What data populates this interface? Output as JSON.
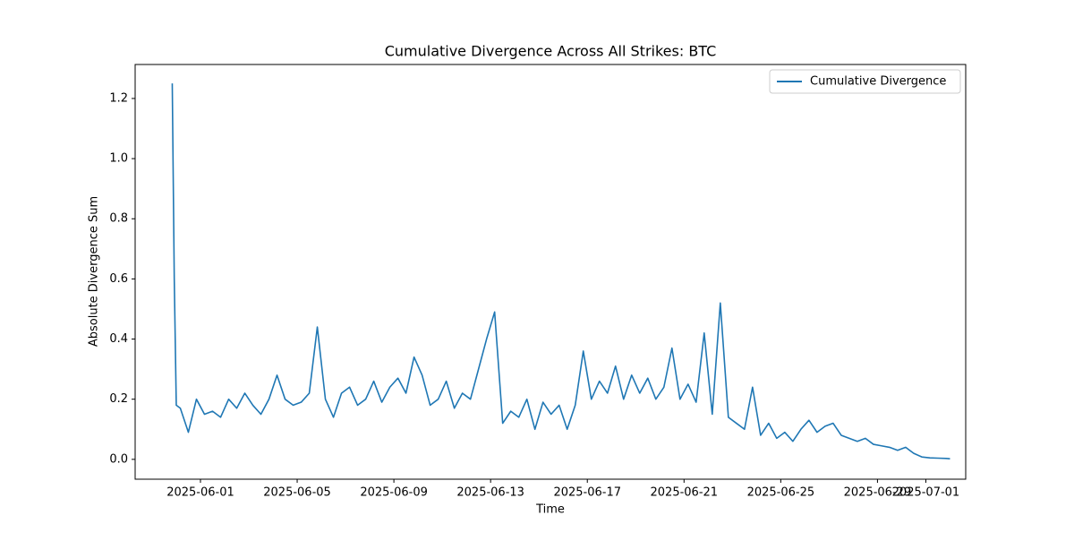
{
  "chart_data": {
    "type": "line",
    "title": "Cumulative Divergence Across All Strikes: BTC",
    "x_label": "Time",
    "y_label": "Absolute Divergence Sum",
    "x": [
      "2025-05-30T20:00",
      "2025-05-30T22:00",
      "2025-05-31T00:00",
      "2025-05-31T04:00",
      "2025-05-31T12:00",
      "2025-05-31T20:00",
      "2025-06-01T04:00",
      "2025-06-01T12:00",
      "2025-06-01T20:00",
      "2025-06-02T04:00",
      "2025-06-02T12:00",
      "2025-06-02T20:00",
      "2025-06-03T04:00",
      "2025-06-03T12:00",
      "2025-06-03T20:00",
      "2025-06-04T04:00",
      "2025-06-04T12:00",
      "2025-06-04T20:00",
      "2025-06-05T04:00",
      "2025-06-05T12:00",
      "2025-06-05T20:00",
      "2025-06-06T04:00",
      "2025-06-06T12:00",
      "2025-06-06T20:00",
      "2025-06-07T04:00",
      "2025-06-07T12:00",
      "2025-06-07T20:00",
      "2025-06-08T04:00",
      "2025-06-08T12:00",
      "2025-06-08T20:00",
      "2025-06-09T04:00",
      "2025-06-09T12:00",
      "2025-06-09T20:00",
      "2025-06-10T04:00",
      "2025-06-10T12:00",
      "2025-06-10T20:00",
      "2025-06-11T04:00",
      "2025-06-11T12:00",
      "2025-06-11T20:00",
      "2025-06-12T04:00",
      "2025-06-12T12:00",
      "2025-06-12T20:00",
      "2025-06-13T04:00",
      "2025-06-13T12:00",
      "2025-06-13T20:00",
      "2025-06-14T04:00",
      "2025-06-14T12:00",
      "2025-06-14T20:00",
      "2025-06-15T04:00",
      "2025-06-15T12:00",
      "2025-06-15T20:00",
      "2025-06-16T04:00",
      "2025-06-16T12:00",
      "2025-06-16T20:00",
      "2025-06-17T04:00",
      "2025-06-17T12:00",
      "2025-06-17T20:00",
      "2025-06-18T04:00",
      "2025-06-18T12:00",
      "2025-06-18T20:00",
      "2025-06-19T04:00",
      "2025-06-19T12:00",
      "2025-06-19T20:00",
      "2025-06-20T04:00",
      "2025-06-20T12:00",
      "2025-06-20T20:00",
      "2025-06-21T04:00",
      "2025-06-21T12:00",
      "2025-06-21T20:00",
      "2025-06-22T04:00",
      "2025-06-22T12:00",
      "2025-06-22T20:00",
      "2025-06-23T04:00",
      "2025-06-23T12:00",
      "2025-06-23T20:00",
      "2025-06-24T04:00",
      "2025-06-24T12:00",
      "2025-06-24T20:00",
      "2025-06-25T04:00",
      "2025-06-25T12:00",
      "2025-06-25T20:00",
      "2025-06-26T04:00",
      "2025-06-26T12:00",
      "2025-06-26T20:00",
      "2025-06-27T04:00",
      "2025-06-27T12:00",
      "2025-06-27T20:00",
      "2025-06-28T04:00",
      "2025-06-28T12:00",
      "2025-06-28T20:00",
      "2025-06-29T04:00",
      "2025-06-29T12:00",
      "2025-06-29T20:00",
      "2025-06-30T04:00",
      "2025-06-30T12:00",
      "2025-06-30T20:00",
      "2025-07-01T04:00",
      "2025-07-01T12:00",
      "2025-07-01T20:00",
      "2025-07-02T00:00"
    ],
    "series": [
      {
        "name": "Cumulative Divergence",
        "color": "#1f77b4",
        "values": [
          1.25,
          0.6,
          0.18,
          0.17,
          0.09,
          0.2,
          0.15,
          0.16,
          0.14,
          0.2,
          0.17,
          0.22,
          0.18,
          0.15,
          0.2,
          0.28,
          0.2,
          0.18,
          0.19,
          0.22,
          0.44,
          0.2,
          0.14,
          0.22,
          0.24,
          0.18,
          0.2,
          0.26,
          0.19,
          0.24,
          0.27,
          0.22,
          0.34,
          0.28,
          0.18,
          0.2,
          0.26,
          0.17,
          0.22,
          0.2,
          0.3,
          0.4,
          0.49,
          0.12,
          0.16,
          0.14,
          0.2,
          0.1,
          0.19,
          0.15,
          0.18,
          0.1,
          0.18,
          0.36,
          0.2,
          0.26,
          0.22,
          0.31,
          0.2,
          0.28,
          0.22,
          0.27,
          0.2,
          0.24,
          0.37,
          0.2,
          0.25,
          0.19,
          0.42,
          0.15,
          0.52,
          0.14,
          0.12,
          0.1,
          0.24,
          0.08,
          0.12,
          0.07,
          0.09,
          0.06,
          0.1,
          0.13,
          0.09,
          0.11,
          0.12,
          0.08,
          0.07,
          0.06,
          0.07,
          0.05,
          0.045,
          0.04,
          0.03,
          0.04,
          0.02,
          0.008,
          0.005,
          0.004,
          0.003,
          0.002
        ]
      }
    ],
    "xlim": [
      "2025-05-29T07:10",
      "2025-07-02T15:35"
    ],
    "xticks": [
      "2025-06-01",
      "2025-06-05",
      "2025-06-09",
      "2025-06-13",
      "2025-06-17",
      "2025-06-21",
      "2025-06-25",
      "2025-06-29",
      "2025-07-01"
    ],
    "ylim": [
      -0.066,
      1.313
    ],
    "yticks": [
      {
        "value": 0,
        "label": "0.0"
      },
      {
        "value": 0.2,
        "label": "0.2"
      },
      {
        "value": 0.4,
        "label": "0.4"
      },
      {
        "value": 0.6,
        "label": "0.6"
      },
      {
        "value": 0.8,
        "label": "0.8"
      },
      {
        "value": 1,
        "label": "1.0"
      },
      {
        "value": 1.2,
        "label": "1.2"
      }
    ],
    "legend": "upper right"
  }
}
